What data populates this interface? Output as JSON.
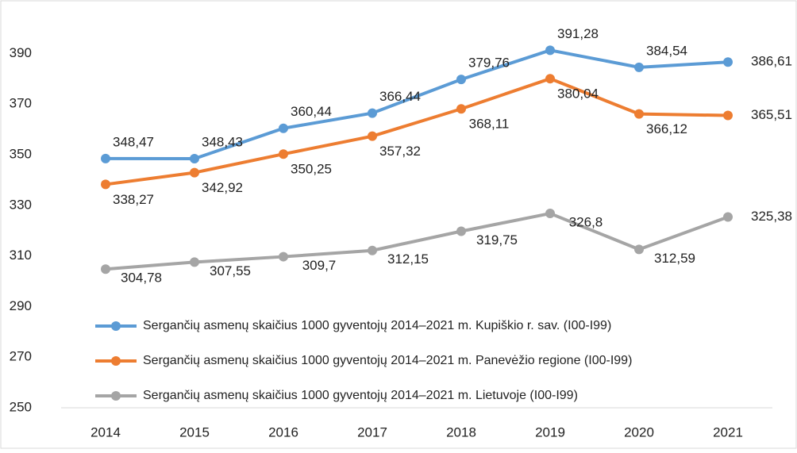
{
  "chart_data": {
    "type": "line",
    "categories": [
      "2014",
      "2015",
      "2016",
      "2017",
      "2018",
      "2019",
      "2020",
      "2021"
    ],
    "series": [
      {
        "name": "Sergančių asmenų skaičius 1000 gyventojų 2014–2021 m. Kupiškio r. sav.  (I00-I99)",
        "color": "#5b9bd5",
        "values": [
          348.47,
          348.43,
          360.44,
          366.44,
          379.76,
          391.28,
          384.54,
          386.61
        ],
        "value_labels": [
          "348,47",
          "348,43",
          "360,44",
          "366,44",
          "379,76",
          "391,28",
          "384,54",
          "386,61"
        ]
      },
      {
        "name": "Sergančių asmenų skaičius 1000 gyventojų 2014–2021 m. Panevėžio regione (I00-I99)",
        "color": "#ed7d31",
        "values": [
          338.27,
          342.92,
          350.25,
          357.32,
          368.11,
          380.04,
          366.12,
          365.51
        ],
        "value_labels": [
          "338,27",
          "342,92",
          "350,25",
          "357,32",
          "368,11",
          "380,04",
          "366,12",
          "365,51"
        ]
      },
      {
        "name": "Sergančių asmenų skaičius 1000 gyventojų 2014–2021 m. Lietuvoje (I00-I99)",
        "color": "#a5a5a5",
        "values": [
          304.78,
          307.55,
          309.7,
          312.15,
          319.75,
          326.8,
          312.59,
          325.38
        ],
        "value_labels": [
          "304,78",
          "307,55",
          "309,7",
          "312,15",
          "319,75",
          "326,8",
          "312,59",
          "325,38"
        ]
      }
    ],
    "ylim": [
      250,
      408
    ],
    "yticks": [
      250,
      270,
      290,
      310,
      330,
      350,
      370,
      390
    ],
    "grid": false,
    "legend": "lower center"
  }
}
